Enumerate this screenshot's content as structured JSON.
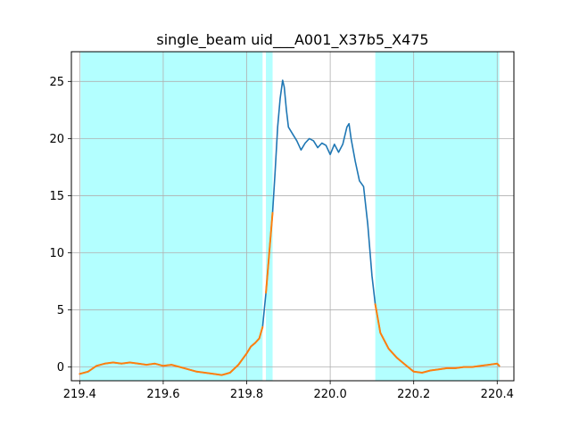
{
  "chart_data": {
    "type": "line",
    "title": "single_beam uid___A001_X37b5_X475",
    "xlabel": "",
    "ylabel": "",
    "xlim": [
      219.38,
      220.44
    ],
    "ylim": [
      -1.2,
      27.6
    ],
    "xticks": [
      219.4,
      219.6,
      219.8,
      220.0,
      220.2,
      220.4
    ],
    "yticks": [
      0,
      5,
      10,
      15,
      20,
      25
    ],
    "xtick_labels": [
      "219.4",
      "219.6",
      "219.8",
      "220.0",
      "220.2",
      "220.4"
    ],
    "ytick_labels": [
      "0",
      "5",
      "10",
      "15",
      "20",
      "25"
    ],
    "grid": true,
    "highlight_ranges": [
      [
        219.402,
        219.838
      ],
      [
        219.846,
        219.862
      ],
      [
        220.108,
        220.405
      ]
    ],
    "colors": {
      "highlight": "#b3ffff",
      "full_series": "#1f77b4",
      "masked_series": "#ff7f0e",
      "grid": "#b0b0b0"
    },
    "series": [
      {
        "role": "full",
        "x": [
          219.4,
          219.42,
          219.44,
          219.46,
          219.48,
          219.5,
          219.52,
          219.54,
          219.56,
          219.58,
          219.6,
          219.62,
          219.64,
          219.66,
          219.68,
          219.7,
          219.72,
          219.74,
          219.76,
          219.78,
          219.8,
          219.81,
          219.82,
          219.83,
          219.838,
          219.846,
          219.854,
          219.862,
          219.868,
          219.874,
          219.88,
          219.886,
          219.89,
          219.895,
          219.9,
          219.91,
          219.92,
          219.93,
          219.94,
          219.95,
          219.96,
          219.97,
          219.98,
          219.99,
          220.0,
          220.01,
          220.02,
          220.03,
          220.04,
          220.045,
          220.05,
          220.06,
          220.07,
          220.08,
          220.09,
          220.1,
          220.108,
          220.12,
          220.14,
          220.16,
          220.18,
          220.2,
          220.22,
          220.24,
          220.26,
          220.28,
          220.3,
          220.32,
          220.34,
          220.36,
          220.38,
          220.4,
          220.405
        ],
        "y": [
          -0.6,
          -0.4,
          0.1,
          0.3,
          0.4,
          0.3,
          0.4,
          0.3,
          0.2,
          0.3,
          0.1,
          0.2,
          0.0,
          -0.2,
          -0.4,
          -0.5,
          -0.6,
          -0.7,
          -0.5,
          0.2,
          1.2,
          1.8,
          2.1,
          2.5,
          3.5,
          6.5,
          10.0,
          13.5,
          17.0,
          21.0,
          23.5,
          25.1,
          24.5,
          22.5,
          21.0,
          20.4,
          19.8,
          19.0,
          19.6,
          20.0,
          19.8,
          19.2,
          19.6,
          19.4,
          18.6,
          19.5,
          18.8,
          19.5,
          21.0,
          21.3,
          20.0,
          18.0,
          16.3,
          15.8,
          12.5,
          8.0,
          5.5,
          3.0,
          1.6,
          0.8,
          0.2,
          -0.4,
          -0.5,
          -0.3,
          -0.2,
          -0.1,
          -0.1,
          0.0,
          0.0,
          0.1,
          0.2,
          0.3,
          0.1
        ]
      },
      {
        "role": "masked-left",
        "x": [
          219.4,
          219.42,
          219.44,
          219.46,
          219.48,
          219.5,
          219.52,
          219.54,
          219.56,
          219.58,
          219.6,
          219.62,
          219.64,
          219.66,
          219.68,
          219.7,
          219.72,
          219.74,
          219.76,
          219.78,
          219.8,
          219.81,
          219.82,
          219.83,
          219.838
        ],
        "y": [
          -0.6,
          -0.4,
          0.1,
          0.3,
          0.4,
          0.3,
          0.4,
          0.3,
          0.2,
          0.3,
          0.1,
          0.2,
          0.0,
          -0.2,
          -0.4,
          -0.5,
          -0.6,
          -0.7,
          -0.5,
          0.2,
          1.2,
          1.8,
          2.1,
          2.5,
          3.5
        ]
      },
      {
        "role": "masked-middle",
        "x": [
          219.846,
          219.854,
          219.862
        ],
        "y": [
          6.5,
          10.0,
          13.5
        ]
      },
      {
        "role": "masked-right",
        "x": [
          220.108,
          220.12,
          220.14,
          220.16,
          220.18,
          220.2,
          220.22,
          220.24,
          220.26,
          220.28,
          220.3,
          220.32,
          220.34,
          220.36,
          220.38,
          220.4,
          220.405
        ],
        "y": [
          5.5,
          3.0,
          1.6,
          0.8,
          0.2,
          -0.4,
          -0.5,
          -0.3,
          -0.2,
          -0.1,
          -0.1,
          0.0,
          0.0,
          0.1,
          0.2,
          0.3,
          0.1
        ]
      }
    ]
  }
}
